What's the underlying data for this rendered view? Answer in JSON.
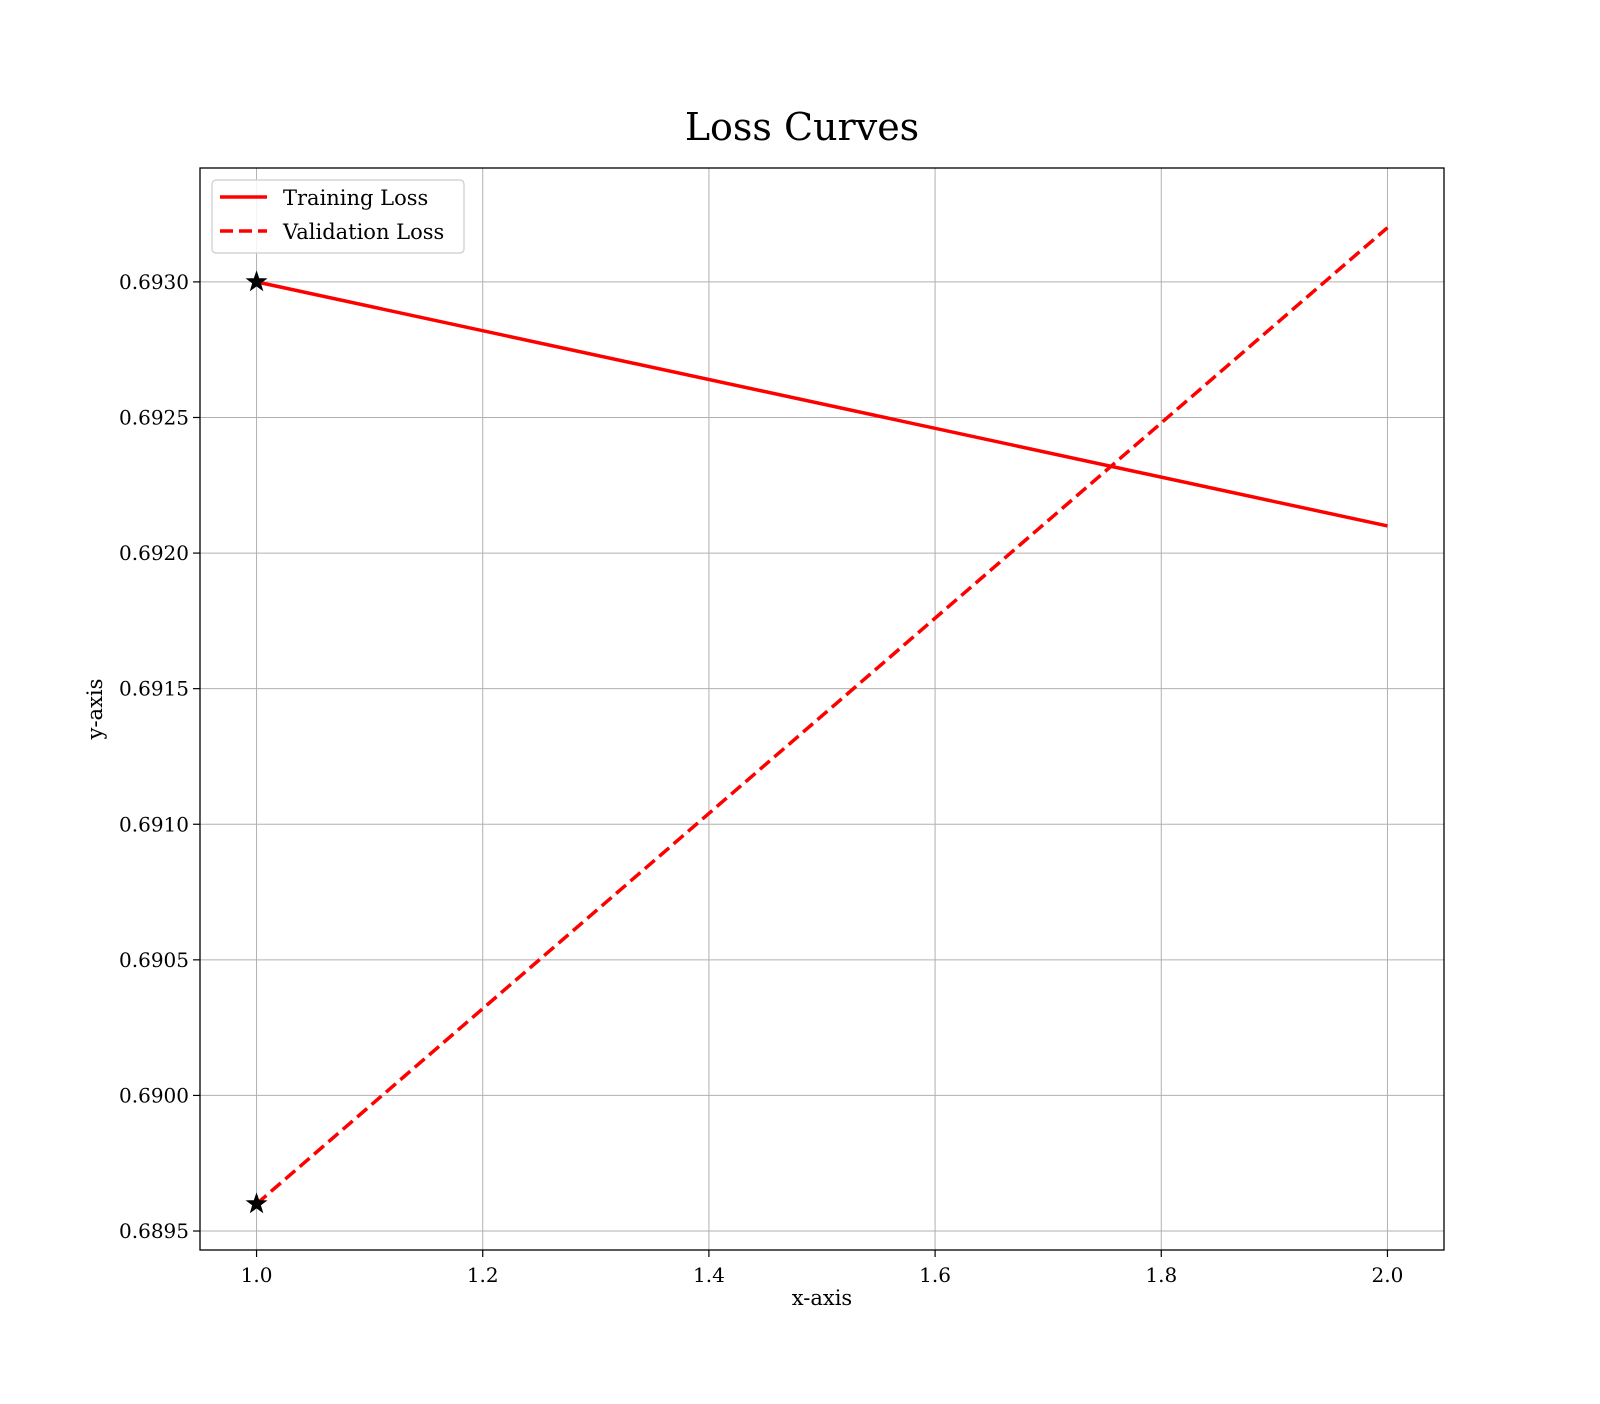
{
  "chart_data": {
    "type": "line",
    "title": "Loss Curves",
    "xlabel": "x-axis",
    "ylabel": "y-axis",
    "xlim": [
      0.95,
      2.05
    ],
    "ylim": [
      0.68943,
      0.69342
    ],
    "xticks": [
      1.0,
      1.2,
      1.4,
      1.6,
      1.8,
      2.0
    ],
    "xtick_labels": [
      "1.0",
      "1.2",
      "1.4",
      "1.6",
      "1.8",
      "2.0"
    ],
    "yticks": [
      0.6895,
      0.69,
      0.6905,
      0.691,
      0.6915,
      0.692,
      0.6925,
      0.693
    ],
    "ytick_labels": [
      "0.6895",
      "0.6900",
      "0.6905",
      "0.6910",
      "0.6915",
      "0.6920",
      "0.6925",
      "0.6930"
    ],
    "grid": true,
    "legend_position": "top-left",
    "series": [
      {
        "name": "Training Loss",
        "x": [
          1.0,
          2.0
        ],
        "y": [
          0.693,
          0.6921
        ],
        "color": "#ff0000",
        "style": "solid",
        "marker_points": [
          [
            1.0,
            0.693
          ]
        ]
      },
      {
        "name": "Validation Loss",
        "x": [
          1.0,
          2.0
        ],
        "y": [
          0.6896,
          0.6932
        ],
        "color": "#ff0000",
        "style": "dashed",
        "marker_points": [
          [
            1.0,
            0.6896
          ]
        ]
      }
    ],
    "marker": {
      "shape": "star",
      "color": "#000000"
    }
  }
}
